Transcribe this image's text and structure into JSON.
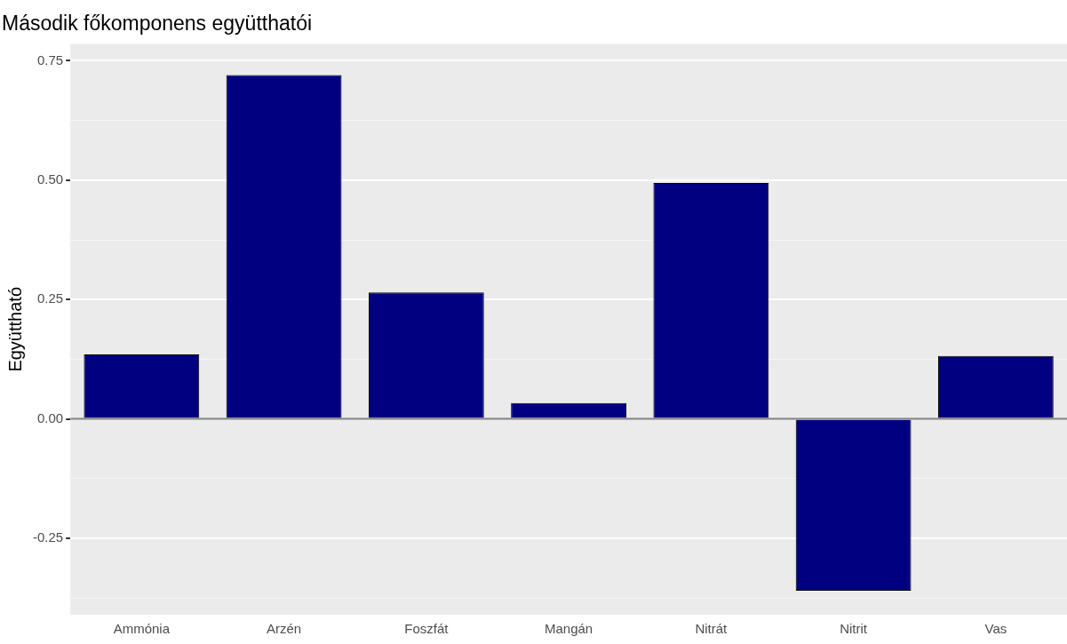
{
  "chart_data": {
    "type": "bar",
    "title": "Második főkomponens együtthatói",
    "ylabel": "Együttható",
    "categories": [
      "Ammónia",
      "Arzén",
      "Foszfát",
      "Mangán",
      "Nitrát",
      "Nitrit",
      "Vas"
    ],
    "values": [
      0.135,
      0.72,
      0.265,
      0.033,
      0.494,
      -0.36,
      0.132
    ],
    "color": "#000080",
    "ylim": [
      -0.41,
      0.785
    ],
    "yticks": [
      {
        "value": -0.375,
        "label": null
      },
      "-0.25",
      {
        "value": -0.125,
        "label": null
      },
      {
        "value": 0,
        "label": "0.00"
      },
      {
        "value": 0.125,
        "label": null
      },
      {
        "value": 0.25,
        "label": "0.25"
      },
      {
        "value": 0.375,
        "label": null
      },
      {
        "value": 0.5,
        "label": "0.50"
      },
      {
        "value": 0.625,
        "label": null
      },
      {
        "value": 0.75,
        "label": "0.75"
      }
    ],
    "ref_lines": [
      {
        "axis": "y",
        "value": 0,
        "color": "#7f7f7f"
      }
    ],
    "grid": true,
    "legend": false
  }
}
